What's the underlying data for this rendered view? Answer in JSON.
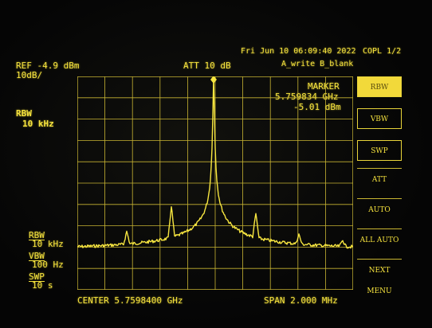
{
  "header": {
    "timestamp": "Fri Jun 10 06:09:40 2022",
    "copl": "COPL 1/2",
    "ref": "REF -4.9 dBm",
    "scale": "10dB/",
    "att": "ATT 10 dB",
    "trace_modes": "A_write B_blank"
  },
  "left_panel": {
    "rbw_label": "RBW",
    "rbw_value": "10 kHz",
    "rbw2_label": "RBW",
    "rbw2_value": "10 kHz",
    "vbw_label": "VBW",
    "vbw_value": "100 Hz",
    "swp_label": "SWP",
    "swp_value": "10 s"
  },
  "marker": {
    "title": "MARKER",
    "frequency": "5.759834 GHz",
    "level": "-5.01 dBm"
  },
  "softkeys": [
    {
      "label": "RBW",
      "state": "active"
    },
    {
      "label": "VBW",
      "state": "framed"
    },
    {
      "label": "SWP",
      "state": "framed"
    },
    {
      "label": "ATT",
      "state": "plain"
    },
    {
      "label": "AUTO",
      "state": "plain"
    },
    {
      "label": "ALL AUTO",
      "state": "plain"
    },
    {
      "label": "NEXT MENU",
      "state": "plain"
    }
  ],
  "footer": {
    "center": "CENTER 5.7598400 GHz",
    "span": "SPAN 2.000 MHz"
  },
  "colors": {
    "trace": "#f7e640",
    "graticule": "#c8b433",
    "text": "#f5e23d",
    "background": "#050505"
  }
}
